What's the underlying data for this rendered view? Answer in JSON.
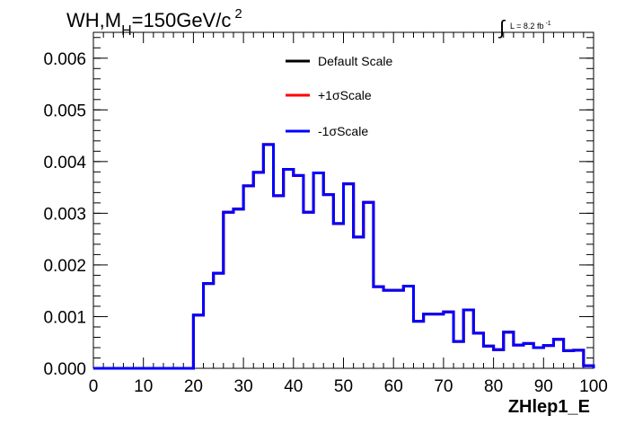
{
  "chart_data": {
    "type": "line",
    "title_main": "WH,M",
    "title_sub": "H",
    "title_rest": "=150GeV/c",
    "title_sup": "2",
    "lumi_label": "L = 8.2 fb",
    "lumi_sup": "-1",
    "lumi_integral": "∫",
    "xlabel": "ZHlep1_E",
    "ylabel": "",
    "xlim": [
      0,
      100
    ],
    "ylim": [
      0,
      0.0065
    ],
    "x_ticks": [
      "0",
      "10",
      "20",
      "30",
      "40",
      "50",
      "60",
      "70",
      "80",
      "90",
      "100"
    ],
    "y_ticks": [
      "0.000",
      "0.001",
      "0.002",
      "0.003",
      "0.004",
      "0.005",
      "0.006"
    ],
    "bin_edges": [
      0,
      2,
      4,
      6,
      8,
      10,
      12,
      14,
      16,
      18,
      20,
      22,
      24,
      26,
      28,
      30,
      32,
      34,
      36,
      38,
      40,
      42,
      44,
      46,
      48,
      50,
      52,
      54,
      56,
      58,
      60,
      62,
      64,
      66,
      68,
      70,
      72,
      74,
      76,
      78,
      80,
      82,
      84,
      86,
      88,
      90,
      92,
      94,
      96,
      98,
      100
    ],
    "series": [
      {
        "name": "Default Scale",
        "color": "#000000",
        "values": [
          0,
          0,
          0,
          0,
          0,
          0,
          0,
          0,
          0,
          0,
          0.00103,
          0.00164,
          0.00184,
          0.00302,
          0.00308,
          0.00353,
          0.00379,
          0.00433,
          0.00334,
          0.00385,
          0.00373,
          0.00302,
          0.00378,
          0.00336,
          0.0028,
          0.00357,
          0.00254,
          0.00321,
          0.00158,
          0.00151,
          0.00151,
          0.00159,
          0.00091,
          0.00105,
          0.00105,
          0.00109,
          0.00052,
          0.00113,
          0.00068,
          0.00043,
          0.00036,
          0.0007,
          0.00045,
          0.00048,
          0.0004,
          0.00044,
          0.00056,
          0.00034,
          0.00035,
          5e-05
        ]
      },
      {
        "name": "+1σScale",
        "color": "#ff0000",
        "values": [
          0,
          0,
          0,
          0,
          0,
          0,
          0,
          0,
          0,
          0,
          0.00103,
          0.00164,
          0.00184,
          0.00302,
          0.00308,
          0.00353,
          0.00379,
          0.00433,
          0.00334,
          0.00385,
          0.00373,
          0.00302,
          0.00378,
          0.00336,
          0.0028,
          0.00357,
          0.00254,
          0.00321,
          0.00158,
          0.00151,
          0.00151,
          0.00159,
          0.00091,
          0.00105,
          0.00105,
          0.00109,
          0.00052,
          0.00113,
          0.00068,
          0.00043,
          0.00036,
          0.0007,
          0.00045,
          0.00048,
          0.0004,
          0.00044,
          0.00056,
          0.00034,
          0.00035,
          5e-05
        ]
      },
      {
        "name": "-1σScale",
        "color": "#0000ff",
        "values": [
          0,
          0,
          0,
          0,
          0,
          0,
          0,
          0,
          0,
          0,
          0.00103,
          0.00164,
          0.00184,
          0.00302,
          0.00308,
          0.00353,
          0.00379,
          0.00433,
          0.00334,
          0.00385,
          0.00373,
          0.00302,
          0.00378,
          0.00336,
          0.0028,
          0.00357,
          0.00254,
          0.00321,
          0.00158,
          0.00151,
          0.00151,
          0.00159,
          0.00091,
          0.00105,
          0.00105,
          0.00109,
          0.00052,
          0.00113,
          0.00068,
          0.00043,
          0.00036,
          0.0007,
          0.00045,
          0.00048,
          0.0004,
          0.00044,
          0.00056,
          0.00034,
          0.00035,
          5e-05
        ]
      }
    ],
    "legend_position": "top-center",
    "grid": false
  }
}
